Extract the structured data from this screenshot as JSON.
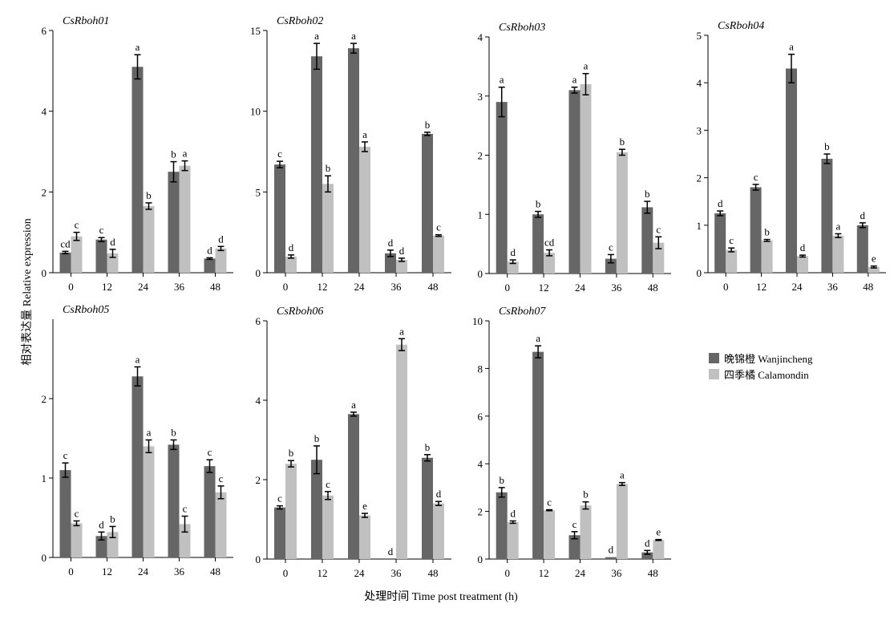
{
  "chart_data": {
    "type": "bar",
    "categories": [
      "0",
      "12",
      "24",
      "36",
      "48"
    ],
    "xlabel": "处理时间 Time post treatment (h)",
    "ylabel": "相对表达量 Relative expression",
    "legend": {
      "placement": "right",
      "entries": [
        {
          "name": "晚锦橙 Wanjincheng",
          "color": "#666666"
        },
        {
          "name": "四季橘 Calamondin",
          "color": "#c0c0c0"
        }
      ]
    },
    "series_colors": [
      "#666666",
      "#c0c0c0"
    ],
    "panels": [
      {
        "title": "CsRboh01",
        "ylim": [
          0,
          6
        ],
        "yticks": [
          0,
          2,
          4,
          6
        ],
        "series": [
          {
            "name": "晚锦橙 Wanjincheng",
            "values": [
              0.5,
              0.82,
              5.1,
              2.5,
              0.35
            ],
            "errors": [
              0.03,
              0.05,
              0.3,
              0.25,
              0.02
            ],
            "letters": [
              "cd",
              "c",
              "a",
              "b",
              "d"
            ]
          },
          {
            "name": "四季橘 Calamondin",
            "values": [
              0.9,
              0.48,
              1.65,
              2.65,
              0.6
            ],
            "errors": [
              0.1,
              0.1,
              0.08,
              0.12,
              0.05
            ],
            "letters": [
              "c",
              "d",
              "b",
              "a",
              "d"
            ]
          }
        ]
      },
      {
        "title": "CsRboh02",
        "ylim": [
          0,
          15
        ],
        "yticks": [
          0,
          5,
          10,
          15
        ],
        "series": [
          {
            "name": "晚锦橙 Wanjincheng",
            "values": [
              6.7,
              13.4,
              13.9,
              1.2,
              8.6
            ],
            "errors": [
              0.2,
              0.8,
              0.3,
              0.2,
              0.1
            ],
            "letters": [
              "c",
              "a",
              "a",
              "d",
              "b"
            ]
          },
          {
            "name": "四季橘 Calamondin",
            "values": [
              1.0,
              5.5,
              7.8,
              0.8,
              2.3
            ],
            "errors": [
              0.1,
              0.5,
              0.3,
              0.1,
              0.05
            ],
            "letters": [
              "d",
              "b",
              "a",
              "d",
              "c"
            ]
          }
        ]
      },
      {
        "title": "CsRboh03",
        "ylim": [
          0,
          4
        ],
        "yticks": [
          0,
          1,
          2,
          3,
          4
        ],
        "series": [
          {
            "name": "晚锦橙 Wanjincheng",
            "values": [
              2.9,
              1.0,
              3.1,
              0.25,
              1.12
            ],
            "errors": [
              0.25,
              0.05,
              0.05,
              0.07,
              0.1
            ],
            "letters": [
              "a",
              "b",
              "a",
              "c",
              "b"
            ]
          },
          {
            "name": "四季橘 Calamondin",
            "values": [
              0.2,
              0.35,
              3.2,
              2.05,
              0.52
            ],
            "errors": [
              0.03,
              0.05,
              0.18,
              0.05,
              0.1
            ],
            "letters": [
              "d",
              "cd",
              "a",
              "b",
              "c"
            ]
          }
        ]
      },
      {
        "title": "CsRboh04",
        "ylim": [
          0,
          5
        ],
        "yticks": [
          0,
          1,
          2,
          3,
          4,
          5
        ],
        "series": [
          {
            "name": "晚锦橙 Wanjincheng",
            "values": [
              1.25,
              1.8,
              4.3,
              2.4,
              1.0
            ],
            "errors": [
              0.05,
              0.06,
              0.3,
              0.1,
              0.05
            ],
            "letters": [
              "d",
              "c",
              "a",
              "b",
              "d"
            ]
          },
          {
            "name": "四季橘 Calamondin",
            "values": [
              0.48,
              0.68,
              0.35,
              0.78,
              0.12
            ],
            "errors": [
              0.04,
              0.02,
              0.02,
              0.04,
              0.02
            ],
            "letters": [
              "c",
              "b",
              "d",
              "a",
              "e"
            ]
          }
        ]
      },
      {
        "title": "CsRboh05",
        "ylim": [
          0,
          3
        ],
        "yticks": [
          0,
          1,
          2
        ],
        "series": [
          {
            "name": "晚锦橙 Wanjincheng",
            "values": [
              1.1,
              0.27,
              2.28,
              1.42,
              1.15
            ],
            "errors": [
              0.09,
              0.05,
              0.12,
              0.06,
              0.08
            ],
            "letters": [
              "c",
              "d",
              "a",
              "b",
              "c"
            ]
          },
          {
            "name": "四季橘 Calamondin",
            "values": [
              0.43,
              0.32,
              1.4,
              0.42,
              0.82
            ],
            "errors": [
              0.03,
              0.07,
              0.08,
              0.1,
              0.08
            ],
            "letters": [
              "c",
              "b",
              "a",
              "c",
              "c"
            ]
          }
        ]
      },
      {
        "title": "CsRboh06",
        "ylim": [
          0,
          6
        ],
        "yticks": [
          0,
          2,
          4,
          6
        ],
        "series": [
          {
            "name": "晚锦橙 Wanjincheng",
            "values": [
              1.3,
              2.5,
              3.65,
              0.0,
              2.55
            ],
            "errors": [
              0.04,
              0.35,
              0.05,
              0.0,
              0.08
            ],
            "letters": [
              "c",
              "b",
              "a",
              "d",
              "b"
            ]
          },
          {
            "name": "四季橘 Calamondin",
            "values": [
              2.4,
              1.6,
              1.1,
              5.4,
              1.4
            ],
            "errors": [
              0.08,
              0.1,
              0.05,
              0.15,
              0.05
            ],
            "letters": [
              "b",
              "c",
              "e",
              "a",
              "d"
            ]
          }
        ]
      },
      {
        "title": "CsRboh07",
        "ylim": [
          0,
          10
        ],
        "yticks": [
          0,
          2,
          4,
          6,
          8,
          10
        ],
        "series": [
          {
            "name": "晚锦橙 Wanjincheng",
            "values": [
              2.8,
              8.7,
              1.0,
              0.08,
              0.28
            ],
            "errors": [
              0.2,
              0.25,
              0.15,
              0.0,
              0.08
            ],
            "letters": [
              "b",
              "a",
              "c",
              "d",
              "d"
            ]
          },
          {
            "name": "四季橘 Calamondin",
            "values": [
              1.55,
              2.05,
              2.25,
              3.15,
              0.8
            ],
            "errors": [
              0.05,
              0.02,
              0.15,
              0.06,
              0.02
            ],
            "letters": [
              "d",
              "c",
              "b",
              "a",
              "e"
            ]
          }
        ]
      }
    ]
  }
}
